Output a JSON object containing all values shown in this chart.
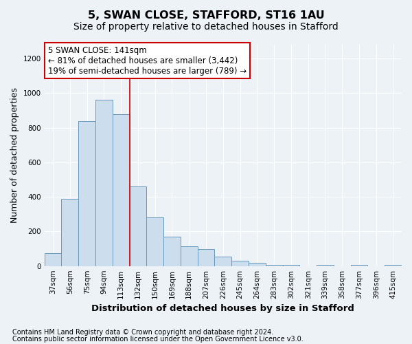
{
  "title": "5, SWAN CLOSE, STAFFORD, ST16 1AU",
  "subtitle": "Size of property relative to detached houses in Stafford",
  "xlabel": "Distribution of detached houses by size in Stafford",
  "ylabel": "Number of detached properties",
  "categories": [
    "37sqm",
    "56sqm",
    "75sqm",
    "94sqm",
    "113sqm",
    "132sqm",
    "150sqm",
    "169sqm",
    "188sqm",
    "207sqm",
    "226sqm",
    "245sqm",
    "264sqm",
    "283sqm",
    "302sqm",
    "321sqm",
    "339sqm",
    "358sqm",
    "377sqm",
    "396sqm",
    "415sqm"
  ],
  "values": [
    75,
    390,
    840,
    960,
    880,
    460,
    280,
    170,
    115,
    100,
    55,
    30,
    20,
    5,
    5,
    0,
    5,
    0,
    5,
    0,
    5
  ],
  "bar_color": "#ccdded",
  "bar_edgecolor": "#6899bb",
  "red_line_x": 4.5,
  "red_line_color": "#cc0000",
  "annotation_text": "5 SWAN CLOSE: 141sqm\n← 81% of detached houses are smaller (3,442)\n19% of semi-detached houses are larger (789) →",
  "annotation_box_facecolor": "#ffffff",
  "annotation_box_edgecolor": "#cc0000",
  "ylim": [
    0,
    1280
  ],
  "yticks": [
    0,
    200,
    400,
    600,
    800,
    1000,
    1200
  ],
  "footnote1": "Contains HM Land Registry data © Crown copyright and database right 2024.",
  "footnote2": "Contains public sector information licensed under the Open Government Licence v3.0.",
  "bg_color": "#edf2f7",
  "plot_bg_color": "#edf2f7",
  "grid_color": "#ffffff",
  "title_fontsize": 11.5,
  "subtitle_fontsize": 10,
  "axis_label_fontsize": 9,
  "tick_fontsize": 7.5,
  "annotation_fontsize": 8.5,
  "footnote_fontsize": 7
}
